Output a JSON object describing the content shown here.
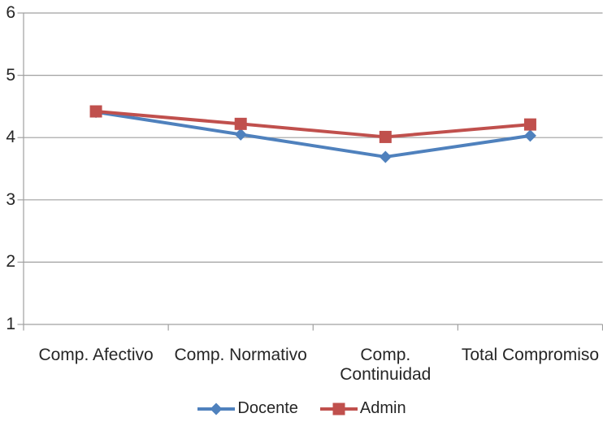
{
  "chart_data": {
    "type": "line",
    "title": "",
    "xlabel": "",
    "ylabel": "",
    "categories": [
      "Comp. Afectivo",
      "Comp. Normativo",
      "Comp.\nContinuidad",
      "Total Compromiso"
    ],
    "series": [
      {
        "name": "Docente",
        "color": "#4F81BD",
        "marker": "diamond",
        "values": [
          4.41,
          4.05,
          3.69,
          4.03
        ]
      },
      {
        "name": "Admin",
        "color": "#C0504D",
        "marker": "square",
        "values": [
          4.42,
          4.22,
          4.01,
          4.21
        ]
      }
    ],
    "ylim": [
      1,
      6
    ],
    "yticks": [
      6,
      5,
      4,
      3,
      2,
      1
    ],
    "grid": true,
    "legend_position": "bottom"
  },
  "colors": {
    "background": "#FFFFFF",
    "gridline": "#A0A0A0",
    "axis_text": "#262626",
    "series_docente": "#4F81BD",
    "series_admin": "#C0504D"
  }
}
